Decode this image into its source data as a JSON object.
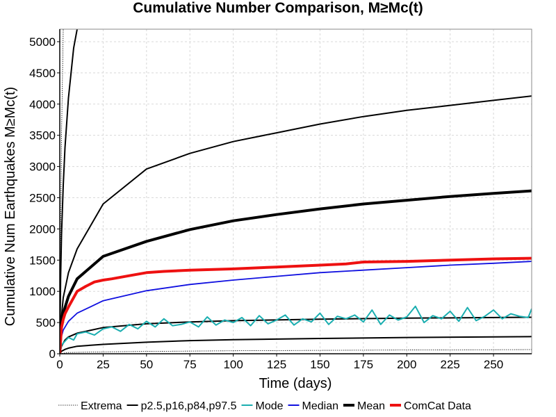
{
  "chart_data": {
    "type": "line",
    "title": "Cumulative Number Comparison, M≥Mc(t)",
    "xlabel": "Time (days)",
    "ylabel": "Cumulative Num Earthquakes M≥Mc(t)",
    "xlim": [
      0,
      272
    ],
    "ylim": [
      0,
      5200
    ],
    "xticks": [
      0,
      25,
      50,
      75,
      100,
      125,
      150,
      175,
      200,
      225,
      250
    ],
    "yticks": [
      0,
      500,
      1000,
      1500,
      2000,
      2500,
      3000,
      3500,
      4000,
      4500,
      5000
    ],
    "grid": true,
    "legend_position": "bottom",
    "legend": [
      {
        "label": "Extrema",
        "color": "#000000",
        "style": "dotted"
      },
      {
        "label": "p2.5,p16,p84,p97.5",
        "color": "#000000",
        "style": "solid"
      },
      {
        "label": "Mode",
        "color": "#1aaeb0",
        "style": "solid"
      },
      {
        "label": "Median",
        "color": "#1010e0",
        "style": "solid"
      },
      {
        "label": "Mean",
        "color": "#000000",
        "style": "thick"
      },
      {
        "label": "ComCat Data",
        "color": "#ee1111",
        "style": "thick"
      }
    ],
    "series": [
      {
        "name": "Extrema",
        "color": "#000000",
        "style": "dotted",
        "x": [
          0,
          5,
          25,
          50,
          100,
          150,
          200,
          250,
          272
        ],
        "y": [
          0,
          20,
          30,
          38,
          48,
          55,
          60,
          65,
          67
        ]
      },
      {
        "name": "Extrema",
        "color": "#000000",
        "style": "dotted",
        "x": [
          0,
          0.5,
          1,
          2
        ],
        "y": [
          0,
          1500,
          3500,
          5200
        ]
      },
      {
        "name": "p2.5,p16,p84,p97.5",
        "color": "#000000",
        "style": "solid",
        "x": [
          0,
          1,
          3,
          5,
          10,
          25,
          50,
          75,
          100,
          150,
          200,
          250,
          272
        ],
        "y": [
          0,
          40,
          70,
          90,
          120,
          150,
          185,
          210,
          225,
          245,
          260,
          270,
          275
        ]
      },
      {
        "name": "p2.5,p16,p84,p97.5",
        "color": "#000000",
        "style": "solid",
        "x": [
          0,
          1,
          3,
          5,
          10,
          25,
          50,
          75,
          100,
          150,
          200,
          250,
          272
        ],
        "y": [
          0,
          120,
          220,
          270,
          330,
          420,
          480,
          510,
          530,
          555,
          570,
          580,
          585
        ]
      },
      {
        "name": "p2.5,p16,p84,p97.5",
        "color": "#000000",
        "style": "solid",
        "x": [
          0,
          1,
          2,
          5,
          10,
          25,
          50,
          75,
          100,
          125,
          150,
          175,
          200,
          225,
          250,
          272
        ],
        "y": [
          0,
          600,
          900,
          1300,
          1680,
          2400,
          2960,
          3210,
          3400,
          3540,
          3680,
          3800,
          3900,
          3980,
          4060,
          4130
        ]
      },
      {
        "name": "p2.5,p16,p84,p97.5",
        "color": "#000000",
        "style": "solid",
        "x": [
          0,
          0.5,
          1,
          2,
          3,
          5,
          8,
          10
        ],
        "y": [
          0,
          1200,
          1900,
          2700,
          3300,
          4100,
          4900,
          5200
        ]
      },
      {
        "name": "Mode",
        "color": "#1aaeb0",
        "style": "solid",
        "x": [
          0,
          1,
          3,
          5,
          8,
          10,
          15,
          20,
          25,
          30,
          35,
          40,
          45,
          50,
          55,
          60,
          65,
          70,
          75,
          80,
          85,
          90,
          95,
          100,
          105,
          110,
          115,
          120,
          125,
          130,
          135,
          140,
          145,
          150,
          155,
          160,
          165,
          170,
          175,
          180,
          185,
          190,
          195,
          200,
          205,
          210,
          215,
          220,
          225,
          230,
          235,
          240,
          245,
          250,
          255,
          260,
          265,
          270,
          272
        ],
        "y": [
          0,
          140,
          200,
          260,
          220,
          320,
          350,
          300,
          400,
          430,
          360,
          470,
          400,
          520,
          430,
          560,
          450,
          470,
          510,
          430,
          590,
          460,
          540,
          500,
          580,
          450,
          610,
          480,
          540,
          620,
          460,
          560,
          510,
          650,
          470,
          600,
          560,
          620,
          510,
          700,
          470,
          620,
          540,
          590,
          760,
          500,
          610,
          560,
          680,
          520,
          740,
          530,
          600,
          700,
          560,
          640,
          600,
          580,
          720
        ]
      },
      {
        "name": "Median",
        "color": "#1010e0",
        "style": "solid",
        "x": [
          0,
          1,
          2,
          5,
          10,
          25,
          50,
          75,
          100,
          125,
          150,
          175,
          200,
          225,
          250,
          272
        ],
        "y": [
          0,
          280,
          380,
          520,
          650,
          850,
          1010,
          1110,
          1180,
          1240,
          1300,
          1340,
          1380,
          1420,
          1450,
          1480
        ]
      },
      {
        "name": "Mean",
        "color": "#000000",
        "style": "thick",
        "x": [
          0,
          1,
          2,
          5,
          10,
          25,
          50,
          75,
          100,
          125,
          150,
          175,
          200,
          225,
          250,
          272
        ],
        "y": [
          0,
          500,
          650,
          920,
          1200,
          1560,
          1800,
          1990,
          2130,
          2230,
          2320,
          2400,
          2460,
          2520,
          2570,
          2610
        ]
      },
      {
        "name": "ComCat Data",
        "color": "#ee1111",
        "style": "thick",
        "x": [
          0,
          1,
          2,
          3,
          5,
          8,
          10,
          15,
          20,
          25,
          30,
          40,
          50,
          60,
          75,
          100,
          125,
          150,
          165,
          175,
          200,
          225,
          250,
          272
        ],
        "y": [
          0,
          420,
          550,
          640,
          750,
          900,
          1000,
          1080,
          1150,
          1180,
          1200,
          1250,
          1300,
          1320,
          1340,
          1360,
          1390,
          1420,
          1440,
          1470,
          1480,
          1500,
          1520,
          1530
        ]
      }
    ]
  }
}
